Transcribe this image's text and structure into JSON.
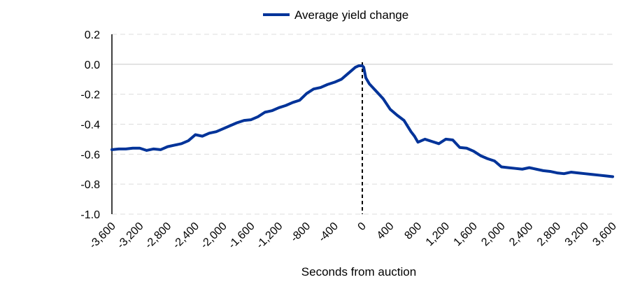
{
  "chart_data": {
    "type": "line",
    "title": "",
    "xlabel": "Seconds from auction",
    "ylabel": "",
    "xlim": [
      -3600,
      3600
    ],
    "ylim": [
      -1.0,
      0.2
    ],
    "x_ticks": [
      -3600,
      -3200,
      -2800,
      -2400,
      -2000,
      -1600,
      -1200,
      -800,
      -400,
      0,
      400,
      800,
      1200,
      1600,
      2000,
      2400,
      2800,
      3200,
      3600
    ],
    "x_tick_labels": [
      "-3,600",
      "-3,200",
      "-2,800",
      "-2,400",
      "-2,000",
      "-1,600",
      "-1,200",
      "-800",
      "-400",
      "0",
      "400",
      "800",
      "1,200",
      "1,600",
      "2,000",
      "2,400",
      "2,800",
      "3,200",
      "3,600"
    ],
    "y_ticks": [
      0.2,
      0.0,
      -0.2,
      -0.4,
      -0.6,
      -0.8,
      -1.0
    ],
    "y_tick_labels": [
      "0.2",
      "0.0",
      "-0.2",
      "-0.4",
      "-0.6",
      "-0.8",
      "-1.0"
    ],
    "grid": true,
    "legend_position": "top-center",
    "vertical_marker_x": 0,
    "series": [
      {
        "name": "Average yield change",
        "color": "#003399",
        "x": [
          -3600,
          -3500,
          -3400,
          -3300,
          -3200,
          -3100,
          -3000,
          -2900,
          -2800,
          -2700,
          -2600,
          -2500,
          -2400,
          -2300,
          -2200,
          -2100,
          -2000,
          -1900,
          -1800,
          -1700,
          -1600,
          -1500,
          -1400,
          -1300,
          -1200,
          -1100,
          -1000,
          -900,
          -800,
          -700,
          -600,
          -500,
          -400,
          -300,
          -200,
          -100,
          -50,
          0,
          20,
          50,
          100,
          200,
          300,
          400,
          500,
          600,
          700,
          750,
          800,
          900,
          1000,
          1100,
          1200,
          1300,
          1400,
          1500,
          1600,
          1700,
          1800,
          1900,
          2000,
          2100,
          2200,
          2300,
          2400,
          2500,
          2600,
          2700,
          2800,
          2900,
          3000,
          3100,
          3200,
          3300,
          3400,
          3500,
          3600
        ],
        "y": [
          -0.57,
          -0.565,
          -0.565,
          -0.56,
          -0.56,
          -0.575,
          -0.565,
          -0.57,
          -0.55,
          -0.54,
          -0.53,
          -0.51,
          -0.47,
          -0.48,
          -0.46,
          -0.45,
          -0.43,
          -0.41,
          -0.39,
          -0.375,
          -0.37,
          -0.35,
          -0.32,
          -0.31,
          -0.29,
          -0.275,
          -0.255,
          -0.24,
          -0.195,
          -0.165,
          -0.155,
          -0.135,
          -0.12,
          -0.1,
          -0.06,
          -0.02,
          -0.01,
          -0.01,
          -0.02,
          -0.09,
          -0.13,
          -0.18,
          -0.23,
          -0.3,
          -0.34,
          -0.375,
          -0.45,
          -0.48,
          -0.52,
          -0.5,
          -0.515,
          -0.53,
          -0.5,
          -0.505,
          -0.555,
          -0.56,
          -0.58,
          -0.61,
          -0.63,
          -0.645,
          -0.685,
          -0.69,
          -0.695,
          -0.7,
          -0.69,
          -0.7,
          -0.71,
          -0.715,
          -0.725,
          -0.73,
          -0.72,
          -0.725,
          -0.73,
          -0.735,
          -0.74,
          -0.745,
          -0.75
        ]
      }
    ]
  }
}
